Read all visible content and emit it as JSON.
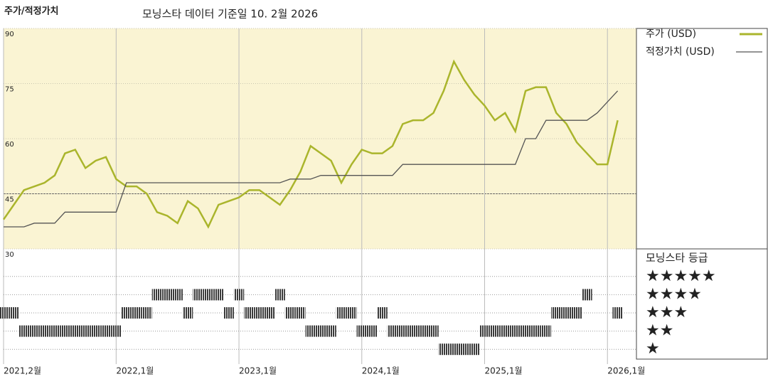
{
  "chart_data": [
    {
      "type": "line",
      "title": "주가/적정가치",
      "subtitle": "모닝스타 데이터 기준일 10. 2월 2026",
      "x": [
        "2021-02",
        "2021-03",
        "2021-04",
        "2021-05",
        "2021-06",
        "2021-07",
        "2021-08",
        "2021-09",
        "2021-10",
        "2021-11",
        "2021-12",
        "2022-01",
        "2022-02",
        "2022-03",
        "2022-04",
        "2022-05",
        "2022-06",
        "2022-07",
        "2022-08",
        "2022-09",
        "2022-10",
        "2022-11",
        "2022-12",
        "2023-01",
        "2023-02",
        "2023-03",
        "2023-04",
        "2023-05",
        "2023-06",
        "2023-07",
        "2023-08",
        "2023-09",
        "2023-10",
        "2023-11",
        "2023-12",
        "2024-01",
        "2024-02",
        "2024-03",
        "2024-04",
        "2024-05",
        "2024-06",
        "2024-07",
        "2024-08",
        "2024-09",
        "2024-10",
        "2024-11",
        "2024-12",
        "2025-01",
        "2025-02",
        "2025-03",
        "2025-04",
        "2025-05",
        "2025-06",
        "2025-07",
        "2025-08",
        "2025-09",
        "2025-10",
        "2025-11",
        "2025-12",
        "2026-01",
        "2026-02"
      ],
      "series": [
        {
          "name": "주가 (USD)",
          "color": "#aab52c",
          "values": [
            38,
            42,
            46,
            47,
            48,
            50,
            56,
            57,
            52,
            54,
            55,
            49,
            47,
            47,
            45,
            40,
            39,
            37,
            43,
            41,
            36,
            42,
            43,
            44,
            46,
            46,
            44,
            42,
            46,
            51,
            58,
            56,
            54,
            48,
            53,
            57,
            56,
            56,
            58,
            64,
            65,
            65,
            67,
            73,
            81,
            76,
            72,
            69,
            65,
            67,
            62,
            73,
            74,
            74,
            67,
            64,
            59,
            56,
            53,
            53,
            65
          ]
        },
        {
          "name": "적정가치 (USD)",
          "color": "#555555",
          "values": [
            36,
            36,
            36,
            37,
            37,
            37,
            40,
            40,
            40,
            40,
            40,
            40,
            48,
            48,
            48,
            48,
            48,
            48,
            48,
            48,
            48,
            48,
            48,
            48,
            48,
            48,
            48,
            48,
            49,
            49,
            49,
            50,
            50,
            50,
            50,
            50,
            50,
            50,
            50,
            53,
            53,
            53,
            53,
            53,
            53,
            53,
            53,
            53,
            53,
            53,
            53,
            60,
            60,
            65,
            65,
            65,
            65,
            65,
            67,
            70,
            73
          ]
        }
      ],
      "xlim": [
        "2021-02",
        "2026-03"
      ],
      "xticks": [
        {
          "value": "2021-02",
          "label": "2021,2월"
        },
        {
          "value": "2022-01",
          "label": "2022,1월"
        },
        {
          "value": "2023-01",
          "label": "2023,1월"
        },
        {
          "value": "2024-01",
          "label": "2024,1월"
        },
        {
          "value": "2025-01",
          "label": "2025,1월"
        },
        {
          "value": "2026-01",
          "label": "2026,1월"
        }
      ],
      "ylim": [
        30,
        90
      ],
      "yticks": [
        30,
        45,
        60,
        75,
        90
      ],
      "grid": true
    },
    {
      "type": "rating",
      "title": "모닝스타 등급",
      "x": [
        "2021-02",
        "2021-03",
        "2021-04",
        "2021-05",
        "2021-06",
        "2021-07",
        "2021-08",
        "2021-09",
        "2021-10",
        "2021-11",
        "2021-12",
        "2022-01",
        "2022-02",
        "2022-03",
        "2022-04",
        "2022-05",
        "2022-06",
        "2022-07",
        "2022-08",
        "2022-09",
        "2022-10",
        "2022-11",
        "2022-12",
        "2023-01",
        "2023-02",
        "2023-03",
        "2023-04",
        "2023-05",
        "2023-06",
        "2023-07",
        "2023-08",
        "2023-09",
        "2023-10",
        "2023-11",
        "2023-12",
        "2024-01",
        "2024-02",
        "2024-03",
        "2024-04",
        "2024-05",
        "2024-06",
        "2024-07",
        "2024-08",
        "2024-09",
        "2024-10",
        "2024-11",
        "2024-12",
        "2025-01",
        "2025-02",
        "2025-03",
        "2025-04",
        "2025-05",
        "2025-06",
        "2025-07",
        "2025-08",
        "2025-09",
        "2025-10",
        "2025-11",
        "2025-12",
        "2026-01",
        "2026-02"
      ],
      "values": [
        3,
        3,
        2,
        2,
        2,
        2,
        2,
        2,
        2,
        2,
        2,
        2,
        3,
        3,
        3,
        4,
        4,
        4,
        3,
        4,
        4,
        4,
        3,
        4,
        3,
        3,
        3,
        4,
        3,
        3,
        2,
        2,
        2,
        3,
        3,
        2,
        2,
        3,
        2,
        2,
        2,
        2,
        2,
        1,
        1,
        1,
        1,
        2,
        2,
        2,
        2,
        2,
        2,
        2,
        3,
        3,
        3,
        4,
        null,
        null,
        3
      ],
      "color": "#3a3a3a",
      "ylim": [
        0.5,
        5.5
      ],
      "yticks": [
        {
          "value": 5,
          "label": "★★★★★"
        },
        {
          "value": 4,
          "label": "★★★★"
        },
        {
          "value": 3,
          "label": "★★★"
        },
        {
          "value": 2,
          "label": "★★"
        },
        {
          "value": 1,
          "label": "★"
        }
      ]
    }
  ]
}
